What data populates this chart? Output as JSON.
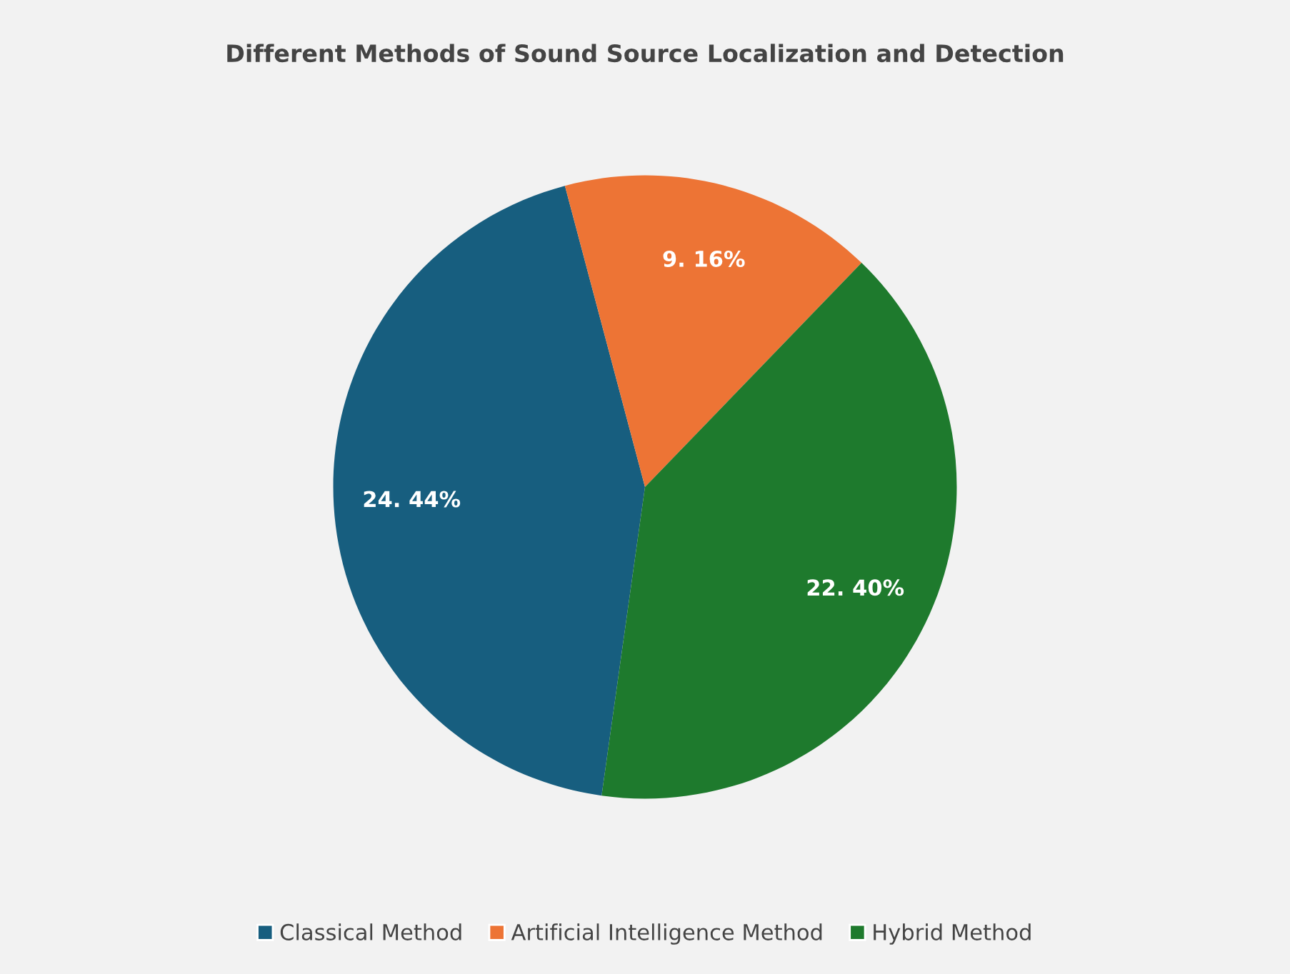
{
  "chart_data": {
    "type": "pie",
    "title": "Different Methods of Sound Source Localization and Detection",
    "categories": [
      "Classical Method",
      "Artificial Intelligence Method",
      "Hybrid Method"
    ],
    "values": [
      24.44,
      9.16,
      22.4
    ],
    "value_labels": [
      "24. 44%",
      "9. 16%",
      "22. 40%"
    ],
    "colors": [
      "#175e7f",
      "#ed7435",
      "#1e7a2d"
    ],
    "legend": "bottom"
  }
}
